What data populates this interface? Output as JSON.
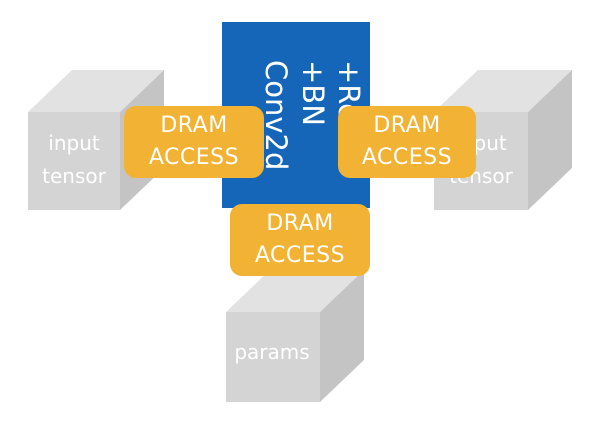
{
  "nodes": {
    "input_tensor_left": {
      "label_lines": [
        "input",
        "tensor"
      ]
    },
    "input_tensor_right": {
      "label_lines": [
        "input",
        "tensor"
      ]
    },
    "params": {
      "label": "params"
    },
    "op_block": {
      "label_lines": [
        "Conv2d",
        "+BN",
        "+Relu"
      ],
      "color": "#1565b8"
    }
  },
  "dram_access": [
    {
      "id": "left",
      "lines": [
        "DRAM",
        "ACCESS"
      ]
    },
    {
      "id": "right",
      "lines": [
        "DRAM",
        "ACCESS"
      ]
    },
    {
      "id": "bottom",
      "lines": [
        "DRAM",
        "ACCESS"
      ]
    }
  ],
  "colors": {
    "dram": "#f2b233",
    "op_block": "#1565b8",
    "cube_front": "#d4d4d4",
    "cube_top": "#e2e2e2",
    "cube_side": "#c4c4c4"
  }
}
